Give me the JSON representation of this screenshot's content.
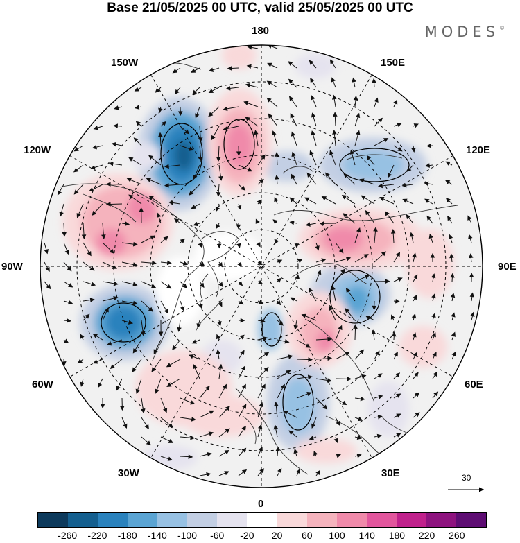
{
  "title": "Base 21/05/2025 00 UTC, valid 25/05/2025 00 UTC",
  "brand": "MODES",
  "brand_mark": "©",
  "longitude_labels": {
    "top": "180",
    "bottom": "0",
    "left": "90W",
    "right": "90E",
    "upper_left": "150W",
    "upper_right": "150E",
    "left_upper": "120W",
    "right_upper": "120E",
    "left_lower": "60W",
    "right_lower": "60E",
    "lower_left": "30W",
    "lower_right": "30E"
  },
  "reference_vector": {
    "label": "30"
  },
  "colorbar": {
    "colors": [
      "#0d3a5c",
      "#145f8f",
      "#2a82bd",
      "#5aa4d3",
      "#97c1e3",
      "#c3cfe4",
      "#e5e3ef",
      "#ffffff",
      "#f9d9da",
      "#f5b3bd",
      "#f08aaa",
      "#e2569d",
      "#c0218c",
      "#8e137f",
      "#5e0d73"
    ],
    "labels": [
      "-260",
      "-220",
      "-180",
      "-140",
      "-100",
      "-60",
      "-20",
      "20",
      "60",
      "100",
      "140",
      "180",
      "220",
      "260"
    ]
  }
}
